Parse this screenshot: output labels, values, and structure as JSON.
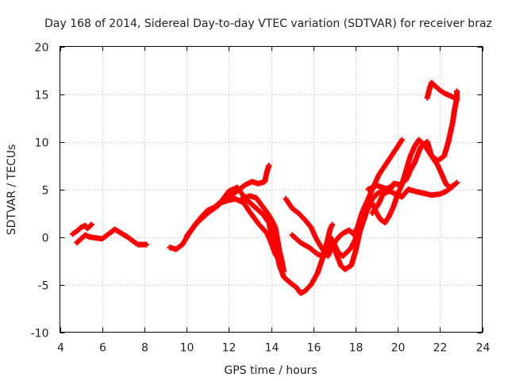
{
  "chart_data": {
    "type": "scatter",
    "title": "Day 168 of 2014, Sidereal Day-to-day VTEC variation (SDTVAR) for receiver braz",
    "xlabel": "GPS time / hours",
    "ylabel": "SDTVAR / TECUs",
    "xlim": [
      4,
      24
    ],
    "ylim": [
      -10,
      20
    ],
    "xticks": [
      4,
      6,
      8,
      10,
      12,
      14,
      16,
      18,
      20,
      22,
      24
    ],
    "yticks": [
      -10,
      -5,
      0,
      5,
      10,
      15,
      20
    ],
    "grid": true,
    "marker": "plus",
    "color": "#ff0000",
    "series": [
      {
        "name": "trace-1",
        "points": [
          [
            4.6,
            0.3
          ],
          [
            4.8,
            0.6
          ],
          [
            5.0,
            1.0
          ],
          [
            5.2,
            1.2
          ],
          [
            5.3,
            0.9
          ],
          [
            5.4,
            1.1
          ],
          [
            5.5,
            1.3
          ]
        ]
      },
      {
        "name": "trace-2",
        "points": [
          [
            4.8,
            -0.6
          ],
          [
            5.0,
            -0.2
          ],
          [
            5.2,
            0.2
          ],
          [
            5.4,
            0.0
          ],
          [
            5.7,
            -0.1
          ],
          [
            6.0,
            -0.2
          ],
          [
            6.3,
            0.3
          ],
          [
            6.6,
            0.8
          ],
          [
            6.9,
            0.4
          ],
          [
            7.2,
            0.0
          ],
          [
            7.5,
            -0.5
          ],
          [
            7.7,
            -0.8
          ],
          [
            7.9,
            -0.8
          ],
          [
            8.1,
            -0.8
          ]
        ]
      },
      {
        "name": "trace-3",
        "points": [
          [
            9.2,
            -1.1
          ],
          [
            9.5,
            -1.3
          ],
          [
            9.8,
            -0.8
          ],
          [
            10.1,
            0.3
          ],
          [
            10.4,
            1.3
          ],
          [
            10.7,
            2.1
          ],
          [
            11.0,
            2.8
          ],
          [
            11.3,
            3.1
          ],
          [
            11.6,
            3.6
          ],
          [
            11.9,
            4.0
          ],
          [
            12.2,
            4.5
          ],
          [
            12.5,
            5.0
          ],
          [
            12.8,
            5.5
          ],
          [
            13.1,
            5.8
          ],
          [
            13.4,
            5.6
          ],
          [
            13.7,
            5.8
          ],
          [
            13.8,
            6.8
          ],
          [
            13.9,
            7.5
          ]
        ]
      },
      {
        "name": "trace-4",
        "points": [
          [
            10.0,
            0.1
          ],
          [
            10.5,
            1.5
          ],
          [
            11.0,
            2.5
          ],
          [
            11.5,
            3.3
          ],
          [
            11.8,
            4.2
          ],
          [
            12.0,
            4.8
          ],
          [
            12.4,
            5.2
          ],
          [
            12.8,
            4.0
          ],
          [
            13.2,
            3.2
          ],
          [
            13.6,
            2.4
          ],
          [
            13.9,
            1.5
          ],
          [
            14.0,
            0.5
          ],
          [
            14.2,
            -1.0
          ],
          [
            14.4,
            -3.0
          ],
          [
            14.6,
            -4.2
          ],
          [
            14.9,
            -4.8
          ],
          [
            15.2,
            -5.3
          ],
          [
            15.4,
            -5.9
          ],
          [
            15.6,
            -5.7
          ],
          [
            15.9,
            -5.0
          ],
          [
            16.2,
            -3.8
          ],
          [
            16.4,
            -2.5
          ],
          [
            16.6,
            -1.0
          ],
          [
            16.8,
            0.8
          ],
          [
            16.9,
            1.3
          ]
        ]
      },
      {
        "name": "trace-5",
        "points": [
          [
            11.5,
            3.5
          ],
          [
            11.9,
            3.8
          ],
          [
            12.3,
            4.0
          ],
          [
            12.7,
            3.6
          ],
          [
            13.0,
            2.6
          ],
          [
            13.4,
            1.4
          ],
          [
            13.8,
            0.4
          ],
          [
            14.0,
            -0.6
          ],
          [
            14.2,
            -1.8
          ],
          [
            14.4,
            -2.5
          ]
        ]
      },
      {
        "name": "trace-6",
        "points": [
          [
            12.6,
            4.0
          ],
          [
            13.0,
            4.3
          ],
          [
            13.3,
            4.1
          ],
          [
            13.6,
            3.2
          ],
          [
            13.8,
            2.6
          ],
          [
            14.0,
            1.9
          ],
          [
            14.2,
            1.0
          ],
          [
            14.3,
            -0.2
          ],
          [
            14.4,
            -1.5
          ],
          [
            14.5,
            -2.4
          ],
          [
            14.6,
            -3.6
          ]
        ]
      },
      {
        "name": "trace-7",
        "points": [
          [
            14.7,
            4.0
          ],
          [
            15.0,
            3.0
          ],
          [
            15.3,
            2.5
          ],
          [
            15.6,
            1.8
          ],
          [
            15.9,
            1.0
          ],
          [
            16.1,
            0.0
          ],
          [
            16.3,
            -0.8
          ],
          [
            16.5,
            -1.5
          ],
          [
            16.7,
            -2.0
          ],
          [
            16.9,
            -1.0
          ],
          [
            17.1,
            -0.3
          ],
          [
            17.3,
            0.2
          ],
          [
            17.5,
            0.5
          ],
          [
            17.7,
            0.7
          ],
          [
            17.9,
            0.3
          ],
          [
            18.1,
            1.0
          ],
          [
            18.3,
            2.5
          ],
          [
            18.5,
            3.5
          ],
          [
            18.8,
            5.0
          ],
          [
            19.1,
            6.5
          ],
          [
            19.4,
            7.5
          ],
          [
            19.7,
            8.5
          ],
          [
            20.0,
            9.5
          ],
          [
            20.2,
            10.2
          ]
        ]
      },
      {
        "name": "trace-8",
        "points": [
          [
            15.0,
            0.2
          ],
          [
            15.4,
            -0.6
          ],
          [
            15.8,
            -1.1
          ],
          [
            16.2,
            -1.8
          ],
          [
            16.5,
            -2.1
          ],
          [
            16.7,
            -1.4
          ],
          [
            16.9,
            -0.6
          ],
          [
            17.1,
            -1.8
          ],
          [
            17.3,
            -3.0
          ],
          [
            17.5,
            -3.4
          ],
          [
            17.8,
            -3.0
          ],
          [
            18.0,
            -1.5
          ],
          [
            18.2,
            0.5
          ],
          [
            18.5,
            2.5
          ],
          [
            18.8,
            4.0
          ],
          [
            19.0,
            4.5
          ],
          [
            19.3,
            4.9
          ],
          [
            19.6,
            5.2
          ],
          [
            19.8,
            5.4
          ]
        ]
      },
      {
        "name": "trace-9",
        "points": [
          [
            16.8,
            0.0
          ],
          [
            17.0,
            -0.8
          ],
          [
            17.2,
            -1.7
          ],
          [
            17.4,
            -2.0
          ],
          [
            17.6,
            -1.6
          ],
          [
            17.8,
            -1.1
          ],
          [
            18.0,
            -0.2
          ],
          [
            18.2,
            1.5
          ],
          [
            18.4,
            2.5
          ],
          [
            18.6,
            3.2
          ],
          [
            18.8,
            3.5
          ],
          [
            19.0,
            2.5
          ],
          [
            19.2,
            1.8
          ],
          [
            19.4,
            1.5
          ],
          [
            19.6,
            2.2
          ],
          [
            19.8,
            3.2
          ],
          [
            20.0,
            4.5
          ],
          [
            20.2,
            5.5
          ],
          [
            20.4,
            7.0
          ],
          [
            20.6,
            8.5
          ],
          [
            20.8,
            9.5
          ],
          [
            21.0,
            10.2
          ],
          [
            21.3,
            9.5
          ],
          [
            21.6,
            8.5
          ],
          [
            21.9,
            7.5
          ],
          [
            22.1,
            6.5
          ],
          [
            22.3,
            5.5
          ],
          [
            22.5,
            5.2
          ],
          [
            22.7,
            5.5
          ]
        ]
      },
      {
        "name": "trace-10",
        "points": [
          [
            18.6,
            5.0
          ],
          [
            19.0,
            5.4
          ],
          [
            19.4,
            5.1
          ],
          [
            19.8,
            4.6
          ],
          [
            20.2,
            4.2
          ],
          [
            20.5,
            5.0
          ],
          [
            20.8,
            4.8
          ],
          [
            21.2,
            4.6
          ],
          [
            21.6,
            4.4
          ],
          [
            22.0,
            4.5
          ],
          [
            22.3,
            4.8
          ],
          [
            22.6,
            5.3
          ],
          [
            22.8,
            5.7
          ]
        ]
      },
      {
        "name": "trace-11",
        "points": [
          [
            18.8,
            2.5
          ],
          [
            19.1,
            3.5
          ],
          [
            19.3,
            4.5
          ],
          [
            19.6,
            4.8
          ],
          [
            19.8,
            5.6
          ],
          [
            20.1,
            5.5
          ],
          [
            20.4,
            6.0
          ],
          [
            20.6,
            7.0
          ],
          [
            20.8,
            7.8
          ],
          [
            21.1,
            9.5
          ],
          [
            21.4,
            10.0
          ],
          [
            21.6,
            8.5
          ],
          [
            21.9,
            8.0
          ],
          [
            22.2,
            8.5
          ],
          [
            22.4,
            10.0
          ],
          [
            22.6,
            12.0
          ],
          [
            22.7,
            13.5
          ],
          [
            22.8,
            14.5
          ],
          [
            22.8,
            15.3
          ]
        ]
      },
      {
        "name": "trace-12",
        "points": [
          [
            21.4,
            14.6
          ],
          [
            21.5,
            15.5
          ],
          [
            21.6,
            16.2
          ],
          [
            21.8,
            15.8
          ],
          [
            22.0,
            15.4
          ],
          [
            22.2,
            15.1
          ],
          [
            22.4,
            14.9
          ],
          [
            22.6,
            14.7
          ],
          [
            22.8,
            14.4
          ]
        ]
      }
    ]
  }
}
